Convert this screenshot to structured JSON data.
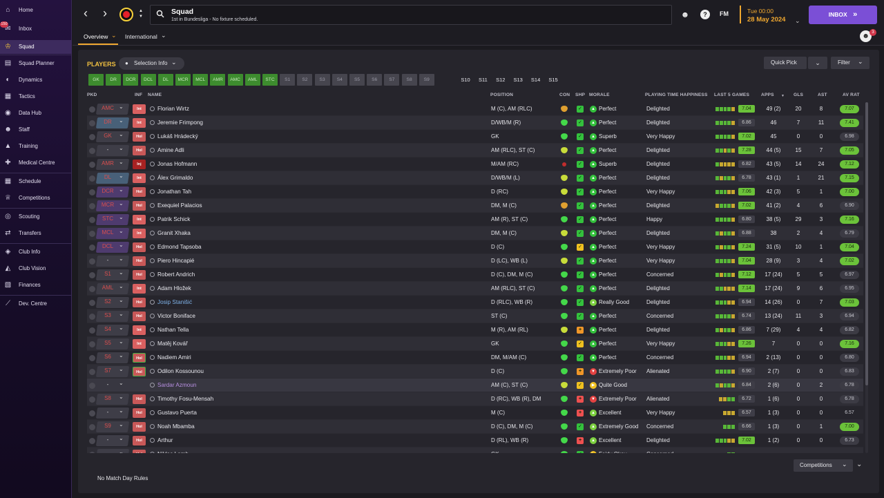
{
  "sidebar": {
    "inbox_badge": "150",
    "items": [
      {
        "label": "Home",
        "icon": "home-icon",
        "glyph": "⌂"
      },
      {
        "label": "Inbox",
        "icon": "inbox-icon",
        "glyph": "✉"
      },
      {
        "label": "Squad",
        "icon": "shirt-icon",
        "glyph": "♔"
      },
      {
        "label": "Squad Planner",
        "icon": "planner-icon",
        "glyph": "▤"
      },
      {
        "label": "Dynamics",
        "icon": "dynamics-icon",
        "glyph": "◐"
      },
      {
        "label": "Tactics",
        "icon": "tactics-icon",
        "glyph": "▦"
      },
      {
        "label": "Data Hub",
        "icon": "data-hub-icon",
        "glyph": "◉"
      },
      {
        "label": "Staff",
        "icon": "staff-icon",
        "glyph": "☻"
      },
      {
        "label": "Training",
        "icon": "training-icon",
        "glyph": "▲"
      },
      {
        "label": "Medical Centre",
        "icon": "medical-icon",
        "glyph": "✚"
      },
      {
        "label": "Schedule",
        "icon": "calendar-icon",
        "glyph": "▦"
      },
      {
        "label": "Competitions",
        "icon": "trophy-icon",
        "glyph": "♕"
      },
      {
        "label": "Scouting",
        "icon": "scouting-icon",
        "glyph": "◎"
      },
      {
        "label": "Transfers",
        "icon": "transfers-icon",
        "glyph": "⇄"
      },
      {
        "label": "Club Info",
        "icon": "shield-icon",
        "glyph": "◈"
      },
      {
        "label": "Club Vision",
        "icon": "vision-icon",
        "glyph": "◭"
      },
      {
        "label": "Finances",
        "icon": "finances-icon",
        "glyph": "▧"
      },
      {
        "label": "Dev. Centre",
        "icon": "dev-centre-icon",
        "glyph": "⟋"
      }
    ]
  },
  "topbar": {
    "title": "Squad",
    "subtitle": "1st in Bundesliga - No fixture scheduled.",
    "fm": "FM",
    "day_time": "Tue 00:00",
    "date": "28 May 2024",
    "inbox_btn": "INBOX",
    "inbox_arrows": "»",
    "social_badge": "3",
    "back": "‹",
    "forward": "›"
  },
  "subtabs": {
    "overview": "Overview",
    "international": "International"
  },
  "toolbar": {
    "players": "PLAYERS",
    "selection_info": "Selection Info",
    "quick_pick": "Quick Pick",
    "filter": "Filter",
    "competitions": "Competitions"
  },
  "positions": [
    "GK",
    "DR",
    "DCR",
    "DCL",
    "DL",
    "MCR",
    "MCL",
    "AMR",
    "AMC",
    "AML",
    "STC",
    "S1",
    "S2",
    "S3",
    "S4",
    "S5",
    "S6",
    "S7",
    "S8",
    "S9",
    "S10",
    "S11",
    "S12",
    "S13",
    "S14",
    "S15"
  ],
  "columns": {
    "pkd": "PKD",
    "inf": "INF",
    "name": "NAME",
    "position": "POSITION",
    "con": "CON",
    "shp": "SHP",
    "morale": "MORALE",
    "happiness": "PLAYING TIME HAPPINESS",
    "last5": "LAST 5 GAMES",
    "apps": "APPS",
    "sort_arrow": "▼",
    "gls": "GLS",
    "ast": "AST",
    "avrat": "AV RAT"
  },
  "players": [
    {
      "sel": "AMC",
      "inf": "Int",
      "name": "Florian Wirtz",
      "pos": "M (C), AM (RLC)",
      "morale": "Perfect",
      "happy": "Delighted",
      "form": "7.04",
      "apps": "49 (2)",
      "gls": "20",
      "ast": "8",
      "av": "7.07"
    },
    {
      "sel": "DR",
      "inf": "Int",
      "name": "Jeremie Frimpong",
      "pos": "D/WB/M (R)",
      "morale": "Perfect",
      "happy": "Delighted",
      "form": "6.86",
      "apps": "46",
      "gls": "7",
      "ast": "11",
      "av": "7.41"
    },
    {
      "sel": "GK",
      "inf": "Hol",
      "name": "Lukáš Hrádecký",
      "pos": "GK",
      "morale": "Superb",
      "happy": "Very Happy",
      "form": "7.02",
      "apps": "45",
      "gls": "0",
      "ast": "0",
      "av": "6.98"
    },
    {
      "sel": "-",
      "inf": "Hol",
      "name": "Amine Adli",
      "pos": "AM (RLC), ST (C)",
      "morale": "Perfect",
      "happy": "Delighted",
      "form": "7.28",
      "apps": "44 (5)",
      "gls": "15",
      "ast": "7",
      "av": "7.05"
    },
    {
      "sel": "AMR",
      "inf": "Inj",
      "name": "Jonas Hofmann",
      "pos": "M/AM (RC)",
      "morale": "Superb",
      "happy": "Delighted",
      "form": "6.82",
      "apps": "43 (5)",
      "gls": "14",
      "ast": "24",
      "av": "7.12"
    },
    {
      "sel": "DL",
      "inf": "Int",
      "name": "Álex Grimaldo",
      "pos": "D/WB/M (L)",
      "morale": "Perfect",
      "happy": "Delighted",
      "form": "6.78",
      "apps": "43 (1)",
      "gls": "1",
      "ast": "21",
      "av": "7.15"
    },
    {
      "sel": "DCR",
      "inf": "Hol",
      "name": "Jonathan Tah",
      "pos": "D (RC)",
      "morale": "Perfect",
      "happy": "Very Happy",
      "form": "7.06",
      "apps": "42 (3)",
      "gls": "5",
      "ast": "1",
      "av": "7.00"
    },
    {
      "sel": "MCR",
      "inf": "Hol",
      "name": "Exequiel Palacios",
      "pos": "DM, M (C)",
      "morale": "Perfect",
      "happy": "Delighted",
      "form": "7.02",
      "apps": "41 (2)",
      "gls": "4",
      "ast": "6",
      "av": "6.90"
    },
    {
      "sel": "STC",
      "inf": "Int",
      "name": "Patrik Schick",
      "pos": "AM (R), ST (C)",
      "morale": "Perfect",
      "happy": "Happy",
      "form": "6.80",
      "apps": "38 (5)",
      "gls": "29",
      "ast": "3",
      "av": "7.16"
    },
    {
      "sel": "MCL",
      "inf": "Int",
      "name": "Granit Xhaka",
      "pos": "DM, M (C)",
      "morale": "Perfect",
      "happy": "Delighted",
      "form": "6.88",
      "apps": "38",
      "gls": "2",
      "ast": "4",
      "av": "6.79"
    },
    {
      "sel": "DCL",
      "inf": "Hol",
      "name": "Edmond Tapsoba",
      "pos": "D (C)",
      "morale": "Perfect",
      "happy": "Very Happy",
      "form": "7.24",
      "apps": "31 (5)",
      "gls": "10",
      "ast": "1",
      "av": "7.04"
    },
    {
      "sel": "-",
      "inf": "Hol",
      "name": "Piero Hincapié",
      "pos": "D (LC), WB (L)",
      "morale": "Perfect",
      "happy": "Very Happy",
      "form": "7.04",
      "apps": "28 (9)",
      "gls": "3",
      "ast": "4",
      "av": "7.02"
    },
    {
      "sel": "S1",
      "inf": "Hol",
      "name": "Robert Andrich",
      "pos": "D (C), DM, M (C)",
      "morale": "Perfect",
      "happy": "Concerned",
      "form": "7.12",
      "apps": "17 (24)",
      "gls": "5",
      "ast": "5",
      "av": "6.97"
    },
    {
      "sel": "AML",
      "inf": "Int",
      "name": "Adam Hložek",
      "pos": "AM (RLC), ST (C)",
      "morale": "Perfect",
      "happy": "Delighted",
      "form": "7.14",
      "apps": "17 (24)",
      "gls": "9",
      "ast": "6",
      "av": "6.95"
    },
    {
      "sel": "S2",
      "inf": "Hol",
      "name": "Josip Stanišić",
      "pos": "D (RLC), WB (R)",
      "morale": "Really Good",
      "happy": "Delighted",
      "form": "6.94",
      "apps": "14 (26)",
      "gls": "0",
      "ast": "7",
      "av": "7.03"
    },
    {
      "sel": "S3",
      "inf": "Hol",
      "name": "Victor Boniface",
      "pos": "ST (C)",
      "morale": "Perfect",
      "happy": "Concerned",
      "form": "6.74",
      "apps": "13 (24)",
      "gls": "11",
      "ast": "3",
      "av": "6.94"
    },
    {
      "sel": "S4",
      "inf": "Int",
      "name": "Nathan Tella",
      "pos": "M (R), AM (RL)",
      "morale": "Perfect",
      "happy": "Delighted",
      "form": "6.86",
      "apps": "7 (29)",
      "gls": "4",
      "ast": "4",
      "av": "6.82"
    },
    {
      "sel": "S5",
      "inf": "Int",
      "name": "Matěj Kovář",
      "pos": "GK",
      "morale": "Perfect",
      "happy": "Very Happy",
      "form": "7.26",
      "apps": "7",
      "gls": "0",
      "ast": "0",
      "av": "7.16"
    },
    {
      "sel": "S6",
      "inf": "Hol",
      "name": "Nadiem Amiri",
      "pos": "DM, M/AM (C)",
      "morale": "Perfect",
      "happy": "Concerned",
      "form": "6.94",
      "apps": "2 (13)",
      "gls": "0",
      "ast": "0",
      "av": "6.80"
    },
    {
      "sel": "S7",
      "inf": "Hol",
      "name": "Odilon Kossounou",
      "pos": "D (C)",
      "morale": "Extremely Poor",
      "happy": "Alienated",
      "form": "6.90",
      "apps": "2 (7)",
      "gls": "0",
      "ast": "0",
      "av": "6.83"
    },
    {
      "sel": "-",
      "inf": "",
      "name": "Sardar Azmoun",
      "pos": "AM (C), ST (C)",
      "morale": "Quite Good",
      "happy": "",
      "form": "6.84",
      "apps": "2 (6)",
      "gls": "0",
      "ast": "2",
      "av": "6.78"
    },
    {
      "sel": "S8",
      "inf": "Hol",
      "name": "Timothy Fosu-Mensah",
      "pos": "D (RC), WB (R), DM",
      "morale": "Extremely Poor",
      "happy": "Alienated",
      "form": "6.72",
      "apps": "1 (6)",
      "gls": "0",
      "ast": "0",
      "av": "6.78"
    },
    {
      "sel": "-",
      "inf": "Hol",
      "name": "Gustavo Puerta",
      "pos": "M (C)",
      "morale": "Excellent",
      "happy": "Very Happy",
      "form": "6.57",
      "apps": "1 (3)",
      "gls": "0",
      "ast": "0",
      "av": "6.57"
    },
    {
      "sel": "S9",
      "inf": "Hol",
      "name": "Noah Mbamba",
      "pos": "D (C), DM, M (C)",
      "morale": "Extremely Good",
      "happy": "Concerned",
      "form": "6.66",
      "apps": "1 (3)",
      "gls": "0",
      "ast": "1",
      "av": "7.00"
    },
    {
      "sel": "-",
      "inf": "Hol",
      "name": "Arthur",
      "pos": "D (RL), WB (R)",
      "morale": "Excellent",
      "happy": "Delighted",
      "form": "7.02",
      "apps": "1 (2)",
      "gls": "0",
      "ast": "0",
      "av": "6.73"
    },
    {
      "sel": "-",
      "inf": "Hol",
      "name": "Niklas Lomb",
      "pos": "GK",
      "morale": "Fairly Okay",
      "happy": "Concerned",
      "form": "",
      "apps": "",
      "gls": "",
      "ast": "",
      "av": ""
    }
  ],
  "footer": {
    "rules": "No Match Day Rules"
  },
  "colors": {
    "accent": "#7b4fd6",
    "sidebar": "#1e0f33",
    "positive": "#6bc23a",
    "date": "#f0a830"
  }
}
